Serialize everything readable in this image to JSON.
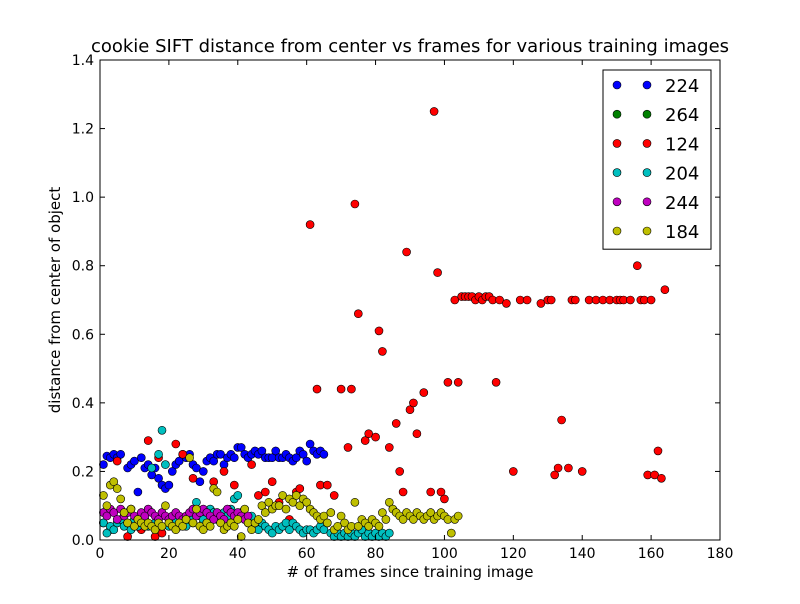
{
  "chart_data": {
    "type": "scatter",
    "title": "cookie SIFT distance from center vs frames for various training images",
    "xlabel": "# of frames since training image",
    "ylabel": "distance from center of object",
    "xlim": [
      0,
      180
    ],
    "ylim": [
      0,
      1.4
    ],
    "xticks": [
      "0",
      "20",
      "40",
      "60",
      "80",
      "100",
      "120",
      "140",
      "160",
      "180"
    ],
    "yticks": [
      "0.0",
      "0.2",
      "0.4",
      "0.6",
      "0.8",
      "1.0",
      "1.2",
      "1.4"
    ],
    "grid": false,
    "legend_position": "top-right",
    "series": [
      {
        "name": "224",
        "color": "#0000ff",
        "x": [
          1,
          2,
          3,
          4,
          5,
          6,
          8,
          9,
          10,
          11,
          12,
          13,
          14,
          15,
          16,
          17,
          18,
          19,
          20,
          21,
          22,
          23,
          24,
          25,
          26,
          27,
          28,
          29,
          30,
          31,
          32,
          33,
          34,
          35,
          36,
          37,
          38,
          39,
          40,
          41,
          42,
          43,
          44,
          45,
          46,
          47,
          48,
          49,
          50,
          51,
          52,
          53,
          54,
          55,
          56,
          57,
          58,
          59,
          60,
          61,
          62,
          63,
          64,
          65
        ],
        "y": [
          0.22,
          0.245,
          0.24,
          0.25,
          0.24,
          0.25,
          0.21,
          0.22,
          0.23,
          0.14,
          0.24,
          0.21,
          0.22,
          0.19,
          0.21,
          0.18,
          0.16,
          0.15,
          0.16,
          0.2,
          0.22,
          0.23,
          0.25,
          0.24,
          0.25,
          0.22,
          0.21,
          0.17,
          0.2,
          0.23,
          0.24,
          0.23,
          0.25,
          0.25,
          0.22,
          0.24,
          0.25,
          0.24,
          0.27,
          0.27,
          0.25,
          0.24,
          0.25,
          0.26,
          0.25,
          0.26,
          0.24,
          0.24,
          0.24,
          0.26,
          0.24,
          0.24,
          0.25,
          0.24,
          0.23,
          0.24,
          0.26,
          0.25,
          0.23,
          0.28,
          0.26,
          0.25,
          0.26,
          0.25
        ]
      },
      {
        "name": "264",
        "color": "#008000",
        "x": [],
        "y": []
      },
      {
        "name": "124",
        "color": "#ff0000",
        "x": [
          1,
          3,
          5,
          8,
          12,
          14,
          16,
          17,
          18,
          22,
          24,
          27,
          30,
          33,
          36,
          39,
          41,
          44,
          46,
          48,
          50,
          52,
          55,
          57,
          58,
          61,
          63,
          64,
          66,
          68,
          70,
          72,
          73,
          74,
          75,
          77,
          78,
          80,
          81,
          82,
          84,
          86,
          87,
          88,
          89,
          90,
          91,
          92,
          94,
          96,
          97,
          98,
          99,
          100,
          101,
          103,
          104,
          105,
          106,
          107,
          108,
          109,
          110,
          111,
          112,
          113,
          114,
          115,
          116,
          118,
          120,
          122,
          124,
          128,
          130,
          131,
          132,
          133,
          134,
          136,
          137,
          138,
          140,
          142,
          144,
          146,
          148,
          150,
          151,
          152,
          154,
          156,
          157,
          158,
          159,
          160,
          161,
          162,
          163,
          164
        ],
        "y": [
          0.05,
          0.03,
          0.23,
          0.01,
          0.03,
          0.29,
          0.01,
          0.24,
          0.02,
          0.28,
          0.25,
          0.18,
          0.05,
          0.17,
          0.2,
          0.16,
          0.08,
          0.22,
          0.13,
          0.14,
          0.17,
          0.11,
          0.06,
          0.14,
          0.15,
          0.92,
          0.44,
          0.16,
          0.16,
          0.13,
          0.44,
          0.27,
          0.44,
          0.98,
          0.66,
          0.29,
          0.31,
          0.3,
          0.61,
          0.55,
          0.27,
          0.34,
          0.2,
          0.14,
          0.84,
          0.38,
          0.4,
          0.31,
          0.43,
          0.14,
          1.25,
          0.78,
          0.14,
          0.12,
          0.46,
          0.7,
          0.46,
          0.71,
          0.71,
          0.71,
          0.71,
          0.7,
          0.71,
          0.7,
          0.71,
          0.71,
          0.7,
          0.46,
          0.7,
          0.69,
          0.2,
          0.7,
          0.7,
          0.69,
          0.7,
          0.7,
          0.19,
          0.21,
          0.35,
          0.21,
          0.7,
          0.7,
          0.2,
          0.7,
          0.7,
          0.7,
          0.7,
          0.7,
          0.7,
          0.7,
          0.7,
          0.8,
          0.7,
          0.7,
          0.19,
          0.7,
          0.19,
          0.26,
          0.18,
          0.73
        ]
      },
      {
        "name": "204",
        "color": "#00bfbf",
        "x": [
          1,
          2,
          3,
          4,
          5,
          6,
          7,
          8,
          9,
          10,
          11,
          12,
          13,
          14,
          15,
          16,
          17,
          18,
          19,
          20,
          21,
          22,
          23,
          24,
          25,
          26,
          27,
          28,
          29,
          30,
          31,
          32,
          33,
          34,
          35,
          36,
          37,
          38,
          39,
          40,
          41,
          42,
          43,
          44,
          45,
          46,
          47,
          48,
          49,
          50,
          51,
          52,
          53,
          54,
          55,
          56,
          57,
          58,
          59,
          60,
          61,
          62,
          63,
          64,
          65,
          66,
          67,
          68,
          69,
          70,
          71,
          72,
          73,
          74,
          75,
          76,
          77,
          78,
          79,
          80,
          81,
          82,
          83,
          84
        ],
        "y": [
          0.05,
          0.02,
          0.04,
          0.03,
          0.05,
          0.06,
          0.04,
          0.05,
          0.03,
          0.06,
          0.04,
          0.05,
          0.06,
          0.04,
          0.21,
          0.05,
          0.25,
          0.32,
          0.22,
          0.04,
          0.05,
          0.06,
          0.04,
          0.05,
          0.04,
          0.06,
          0.05,
          0.11,
          0.07,
          0.06,
          0.05,
          0.09,
          0.08,
          0.06,
          0.07,
          0.08,
          0.07,
          0.09,
          0.12,
          0.13,
          0.07,
          0.06,
          0.05,
          0.07,
          0.04,
          0.03,
          0.05,
          0.04,
          0.03,
          0.02,
          0.04,
          0.03,
          0.04,
          0.05,
          0.03,
          0.05,
          0.04,
          0.03,
          0.02,
          0.03,
          0.03,
          0.02,
          0.03,
          0.04,
          0.03,
          0.05,
          0.02,
          0.01,
          0.02,
          0.01,
          0.02,
          0.01,
          0.02,
          0.01,
          0.02,
          0.03,
          0.01,
          0.02,
          0.01,
          0.02,
          0.01,
          0.02,
          0.01,
          0.02
        ]
      },
      {
        "name": "244",
        "color": "#bf00bf",
        "x": [
          1,
          2,
          3,
          4,
          5,
          6,
          7,
          8,
          9,
          10,
          11,
          12,
          13,
          14,
          15,
          16,
          17,
          18,
          19,
          20,
          21,
          22,
          23,
          24,
          25,
          26,
          27,
          28,
          29,
          30,
          31,
          32,
          33,
          34,
          35,
          36,
          37,
          38,
          39,
          40,
          41,
          42,
          43
        ],
        "y": [
          0.08,
          0.07,
          0.09,
          0.08,
          0.06,
          0.09,
          0.07,
          0.08,
          0.09,
          0.07,
          0.06,
          0.08,
          0.07,
          0.09,
          0.08,
          0.07,
          0.06,
          0.08,
          0.07,
          0.06,
          0.07,
          0.08,
          0.07,
          0.06,
          0.07,
          0.08,
          0.09,
          0.07,
          0.08,
          0.09,
          0.08,
          0.07,
          0.06,
          0.08,
          0.07,
          0.06,
          0.09,
          0.08,
          0.07,
          0.08,
          0.07,
          0.06,
          0.07
        ]
      },
      {
        "name": "184",
        "color": "#bfbf00",
        "x": [
          1,
          2,
          3,
          4,
          5,
          6,
          7,
          8,
          9,
          10,
          11,
          12,
          13,
          14,
          15,
          16,
          17,
          18,
          19,
          20,
          21,
          22,
          23,
          24,
          25,
          26,
          27,
          28,
          29,
          30,
          31,
          32,
          33,
          34,
          35,
          36,
          37,
          38,
          39,
          40,
          41,
          42,
          43,
          44,
          45,
          46,
          47,
          48,
          49,
          50,
          51,
          52,
          53,
          54,
          55,
          56,
          57,
          58,
          59,
          60,
          61,
          62,
          63,
          64,
          65,
          66,
          67,
          68,
          69,
          70,
          71,
          72,
          73,
          74,
          75,
          76,
          77,
          78,
          79,
          80,
          81,
          82,
          83,
          84,
          85,
          86,
          87,
          88,
          89,
          90,
          91,
          92,
          93,
          94,
          95,
          96,
          97,
          98,
          99,
          100,
          101,
          102,
          103,
          104
        ],
        "y": [
          0.13,
          0.1,
          0.16,
          0.17,
          0.15,
          0.12,
          0.08,
          0.05,
          0.09,
          0.04,
          0.06,
          0.05,
          0.04,
          0.05,
          0.04,
          0.03,
          0.05,
          0.04,
          0.1,
          0.05,
          0.04,
          0.03,
          0.05,
          0.04,
          0.06,
          0.24,
          0.05,
          0.09,
          0.04,
          0.03,
          0.05,
          0.04,
          0.15,
          0.14,
          0.05,
          0.03,
          0.04,
          0.05,
          0.04,
          0.06,
          0.01,
          0.09,
          0.05,
          0.03,
          0.05,
          0.06,
          0.1,
          0.08,
          0.11,
          0.09,
          0.1,
          0.1,
          0.13,
          0.09,
          0.12,
          0.11,
          0.13,
          0.1,
          0.12,
          0.11,
          0.09,
          0.08,
          0.07,
          0.06,
          0.07,
          0.05,
          0.08,
          0.03,
          0.04,
          0.07,
          0.05,
          0.03,
          0.04,
          0.11,
          0.04,
          0.06,
          0.05,
          0.04,
          0.06,
          0.05,
          0.04,
          0.08,
          0.06,
          0.11,
          0.09,
          0.08,
          0.07,
          0.06,
          0.08,
          0.07,
          0.06,
          0.08,
          0.07,
          0.06,
          0.07,
          0.08,
          0.06,
          0.07,
          0.08,
          0.07,
          0.06,
          0.02,
          0.06,
          0.07
        ]
      }
    ]
  }
}
